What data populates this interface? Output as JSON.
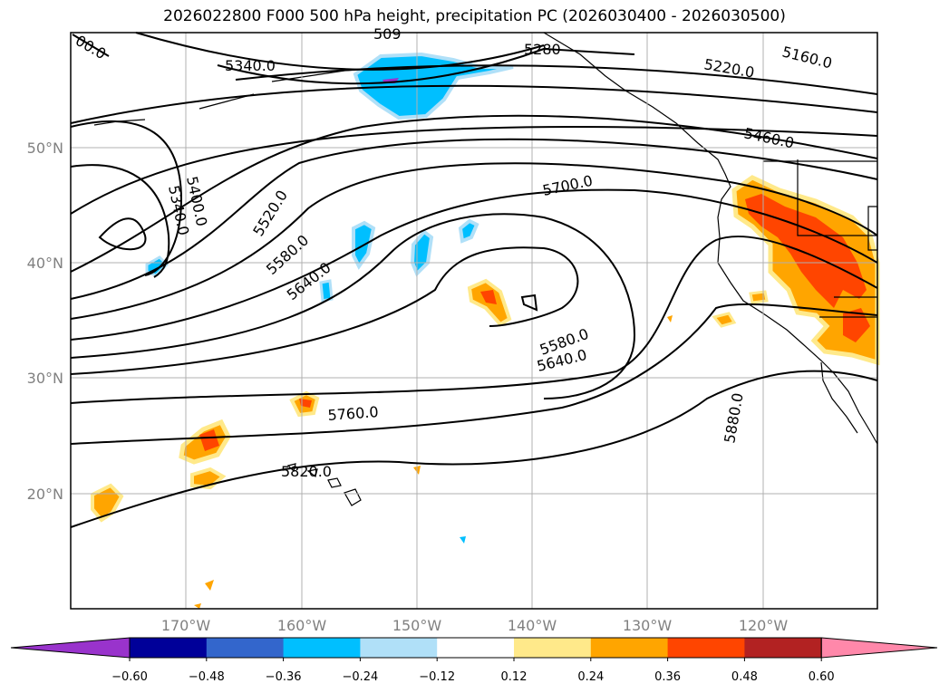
{
  "map": {
    "title": "2026022800 F000 500 hPa height, precipitation PC (2026030400 - 2026030500)",
    "lat_ticks": [
      "50°N",
      "40°N",
      "30°N",
      "20°N"
    ],
    "lon_ticks": [
      "170°W",
      "160°W",
      "150°W",
      "140°W",
      "130°W",
      "120°W"
    ],
    "contour_labels": [
      "5340.0",
      "5280",
      "5220.0",
      "5160.0",
      "5460.0",
      "5400.0",
      "5340.0",
      "5520.0",
      "5580.0",
      "5640.0",
      "5700.0",
      "5580.0",
      "5640.0",
      "5760.0",
      "5820.0",
      "5880.0",
      "00.0",
      "509"
    ],
    "extent": {
      "lon": [
        -180,
        -110
      ],
      "lat": [
        10,
        60
      ]
    },
    "grid": true
  },
  "colorbar": {
    "ticks": [
      "−0.60",
      "−0.48",
      "−0.36",
      "−0.24",
      "−0.12",
      "0.12",
      "0.24",
      "0.36",
      "0.48",
      "0.60"
    ],
    "colors": [
      "#9933cc",
      "#000099",
      "#3366cc",
      "#00bfff",
      "#b0e0f8",
      "#ffffff",
      "#ffe98a",
      "#ffa500",
      "#ff4500",
      "#b22222",
      "#ff88aa"
    ],
    "extend": "both"
  }
}
